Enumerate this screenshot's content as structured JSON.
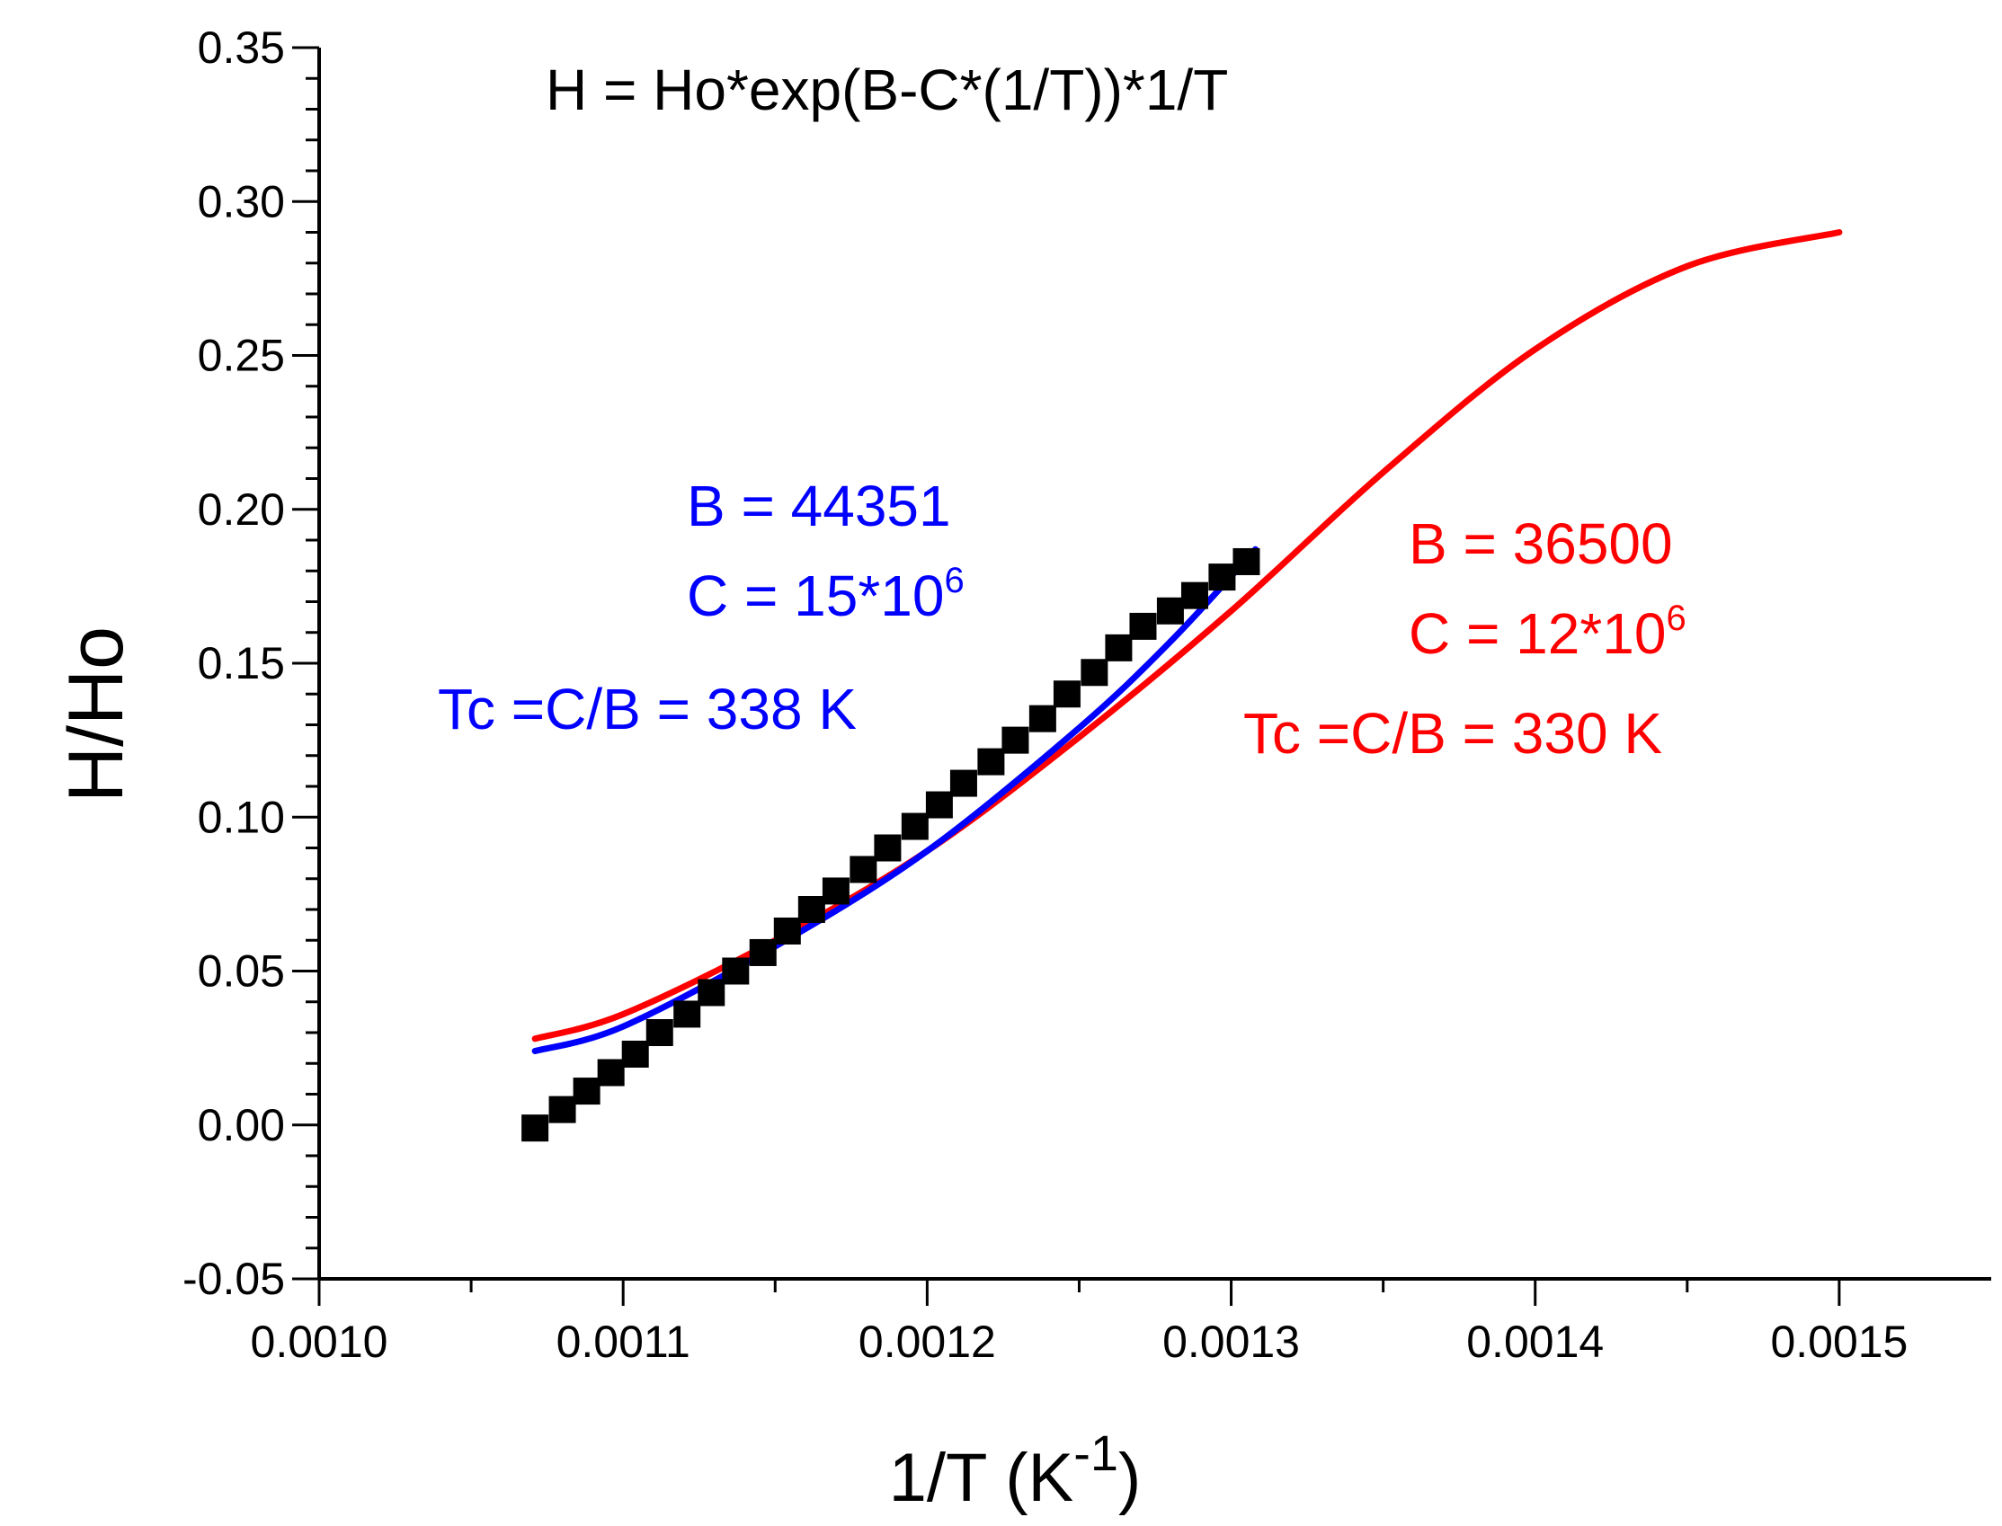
{
  "chart_data": {
    "type": "scatter",
    "title": "",
    "formula": "H = Ho*exp(B-C*(1/T))*1/T",
    "xlabel": {
      "main": "1/T (K",
      "sup": "-1",
      "close": ")"
    },
    "ylabel": "H/Ho",
    "xlim": [
      0.001,
      0.00155
    ],
    "ylim": [
      -0.05,
      0.35
    ],
    "xticks": [
      0.001,
      0.0011,
      0.0012,
      0.0013,
      0.0014,
      0.0015
    ],
    "xtick_labels": [
      "0.0010",
      "0.0011",
      "0.0012",
      "0.0013",
      "0.0014",
      "0.0015"
    ],
    "yticks": [
      -0.05,
      0.0,
      0.05,
      0.1,
      0.15,
      0.2,
      0.25,
      0.3,
      0.35
    ],
    "ytick_labels": [
      "-0.05",
      "0.00",
      "0.05",
      "0.10",
      "0.15",
      "0.20",
      "0.25",
      "0.30",
      "0.35"
    ],
    "colors": {
      "data": "#000000",
      "blue_fit": "#0000ff",
      "red_fit": "#ff0000",
      "axis": "#000000"
    },
    "series": [
      {
        "name": "data",
        "kind": "markers",
        "x": [
          0.001071,
          0.00108,
          0.001088,
          0.001096,
          0.001104,
          0.001112,
          0.001121,
          0.001129,
          0.001137,
          0.001146,
          0.001154,
          0.001162,
          0.00117,
          0.001179,
          0.001187,
          0.001196,
          0.001204,
          0.001212,
          0.001221,
          0.001229,
          0.001238,
          0.001246,
          0.001255,
          0.001263,
          0.001271,
          0.00128,
          0.001288,
          0.001297,
          0.001305
        ],
        "y": [
          -0.001,
          0.005,
          0.011,
          0.017,
          0.023,
          0.03,
          0.036,
          0.043,
          0.05,
          0.056,
          0.063,
          0.07,
          0.076,
          0.083,
          0.09,
          0.097,
          0.104,
          0.111,
          0.118,
          0.125,
          0.132,
          0.14,
          0.147,
          0.155,
          0.162,
          0.167,
          0.172,
          0.178,
          0.183
        ]
      },
      {
        "name": "fit B = 44351, C = 15*10^6",
        "kind": "line",
        "x": [
          0.001071,
          0.0011,
          0.00115,
          0.0012,
          0.00125,
          0.00128,
          0.001308
        ],
        "y": [
          0.024,
          0.032,
          0.058,
          0.089,
          0.129,
          0.157,
          0.187
        ]
      },
      {
        "name": "fit B = 36500, C = 12*10^6",
        "kind": "line",
        "x": [
          0.001071,
          0.0011,
          0.00115,
          0.0012,
          0.00125,
          0.0013,
          0.00135,
          0.0014,
          0.00145,
          0.0015
        ],
        "y": [
          0.028,
          0.036,
          0.06,
          0.089,
          0.126,
          0.167,
          0.212,
          0.252,
          0.279,
          0.29
        ]
      }
    ],
    "annotations": {
      "blue": {
        "b": "B = 44351",
        "c": "C = 15*10",
        "c_sup": "6",
        "tc": "Tc =C/B = 338 K"
      },
      "red": {
        "b": "B = 36500",
        "c": "C = 12*10",
        "c_sup": "6",
        "tc": "Tc =C/B = 330 K"
      }
    }
  }
}
